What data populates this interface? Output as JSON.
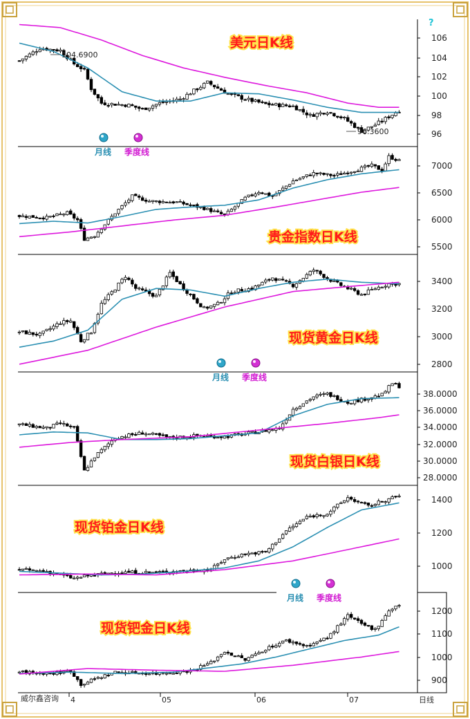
{
  "footer": {
    "brand": "威尔鑫咨询",
    "corner": "日线",
    "help": "?"
  },
  "legend": {
    "month": "月线",
    "quarter": "季度线"
  },
  "x_dates": [
    "4",
    "05",
    "06",
    "07"
  ],
  "chart_data": [
    {
      "type": "candlestick",
      "title": "美元日K线",
      "ticks": [
        "106",
        "104",
        "102",
        "100",
        "98",
        "96"
      ],
      "ylim": [
        95,
        107.3
      ],
      "annotations": [
        "104.6900",
        "96.3600"
      ],
      "anchors": [
        [
          0,
          103.3
        ],
        [
          6,
          104.5
        ],
        [
          12,
          104.3
        ],
        [
          16,
          103.0
        ],
        [
          19,
          102.4
        ],
        [
          21,
          100.6
        ],
        [
          24,
          99.2
        ],
        [
          32,
          99.0
        ],
        [
          36,
          98.6
        ],
        [
          41,
          99.2
        ],
        [
          47,
          99.6
        ],
        [
          55,
          101.2
        ],
        [
          61,
          100.1
        ],
        [
          66,
          99.6
        ],
        [
          72,
          99.1
        ],
        [
          80,
          98.9
        ],
        [
          85,
          98.0
        ],
        [
          90,
          98.4
        ],
        [
          95,
          97.7
        ],
        [
          100,
          96.5
        ],
        [
          104,
          97.1
        ],
        [
          108,
          97.9
        ],
        [
          111,
          98.5
        ]
      ],
      "series": [
        {
          "name": "月线",
          "color": "#2a8fb2",
          "points": [
            [
              0,
              105.0
            ],
            [
              10,
              104.2
            ],
            [
              20,
              102.6
            ],
            [
              30,
              100.3
            ],
            [
              40,
              99.4
            ],
            [
              50,
              99.4
            ],
            [
              60,
              100.2
            ],
            [
              70,
              100.1
            ],
            [
              80,
              99.5
            ],
            [
              90,
              98.8
            ],
            [
              100,
              98.3
            ],
            [
              111,
              98.3
            ]
          ]
        },
        {
          "name": "季度线",
          "color": "#dd18dd",
          "points": [
            [
              0,
              106.8
            ],
            [
              12,
              106.5
            ],
            [
              24,
              105.3
            ],
            [
              36,
              103.8
            ],
            [
              48,
              102.6
            ],
            [
              60,
              101.7
            ],
            [
              72,
              100.9
            ],
            [
              84,
              100.2
            ],
            [
              96,
              99.2
            ],
            [
              105,
              98.8
            ],
            [
              111,
              98.8
            ]
          ]
        }
      ]
    },
    {
      "type": "candlestick",
      "title": "贵金指数日K线",
      "ticks": [
        "7000",
        "6500",
        "6000",
        "5500"
      ],
      "ylim": [
        5400,
        7220
      ],
      "annotations": [],
      "anchors": [
        [
          0,
          6050
        ],
        [
          8,
          6020
        ],
        [
          14,
          6100
        ],
        [
          17,
          5980
        ],
        [
          19,
          5660
        ],
        [
          22,
          5720
        ],
        [
          28,
          6100
        ],
        [
          33,
          6380
        ],
        [
          38,
          6300
        ],
        [
          46,
          6280
        ],
        [
          54,
          6180
        ],
        [
          60,
          6060
        ],
        [
          66,
          6350
        ],
        [
          70,
          6460
        ],
        [
          74,
          6380
        ],
        [
          80,
          6640
        ],
        [
          86,
          6770
        ],
        [
          92,
          6730
        ],
        [
          98,
          6820
        ],
        [
          103,
          6900
        ],
        [
          106,
          6820
        ],
        [
          108,
          7050
        ],
        [
          111,
          6980
        ]
      ],
      "series": [
        {
          "name": "月线",
          "color": "#2a8fb2",
          "points": [
            [
              0,
              5920
            ],
            [
              10,
              5960
            ],
            [
              20,
              5930
            ],
            [
              30,
              6040
            ],
            [
              40,
              6160
            ],
            [
              50,
              6200
            ],
            [
              60,
              6230
            ],
            [
              70,
              6320
            ],
            [
              80,
              6520
            ],
            [
              90,
              6660
            ],
            [
              100,
              6760
            ],
            [
              111,
              6830
            ]
          ]
        },
        {
          "name": "季度线",
          "color": "#dd18dd",
          "points": [
            [
              0,
              5700
            ],
            [
              15,
              5780
            ],
            [
              30,
              5880
            ],
            [
              45,
              5980
            ],
            [
              60,
              6060
            ],
            [
              75,
              6200
            ],
            [
              90,
              6350
            ],
            [
              100,
              6450
            ],
            [
              111,
              6530
            ]
          ]
        }
      ]
    },
    {
      "type": "candlestick",
      "title": "现货黄金日K线",
      "ticks": [
        "3400",
        "3200",
        "3000",
        "2800"
      ],
      "ylim": [
        2760,
        3520
      ],
      "annotations": [],
      "anchors": [
        [
          0,
          3020
        ],
        [
          6,
          3000
        ],
        [
          12,
          3080
        ],
        [
          15,
          3090
        ],
        [
          18,
          2960
        ],
        [
          21,
          3020
        ],
        [
          24,
          3200
        ],
        [
          28,
          3300
        ],
        [
          31,
          3380
        ],
        [
          34,
          3300
        ],
        [
          40,
          3250
        ],
        [
          44,
          3400
        ],
        [
          48,
          3300
        ],
        [
          54,
          3170
        ],
        [
          58,
          3200
        ],
        [
          62,
          3280
        ],
        [
          68,
          3300
        ],
        [
          74,
          3370
        ],
        [
          80,
          3320
        ],
        [
          86,
          3420
        ],
        [
          92,
          3340
        ],
        [
          96,
          3300
        ],
        [
          100,
          3260
        ],
        [
          104,
          3300
        ],
        [
          108,
          3330
        ],
        [
          111,
          3330
        ]
      ],
      "series": [
        {
          "name": "月线",
          "color": "#2a8fb2",
          "points": [
            [
              0,
              2920
            ],
            [
              10,
              2960
            ],
            [
              20,
              3030
            ],
            [
              30,
              3230
            ],
            [
              40,
              3300
            ],
            [
              50,
              3290
            ],
            [
              60,
              3250
            ],
            [
              70,
              3300
            ],
            [
              80,
              3340
            ],
            [
              90,
              3360
            ],
            [
              100,
              3340
            ],
            [
              111,
              3330
            ]
          ]
        },
        {
          "name": "季度线",
          "color": "#dd18dd",
          "points": [
            [
              0,
              2810
            ],
            [
              20,
              2900
            ],
            [
              40,
              3050
            ],
            [
              60,
              3180
            ],
            [
              80,
              3280
            ],
            [
              95,
              3310
            ],
            [
              111,
              3340
            ]
          ]
        }
      ]
    },
    {
      "type": "candlestick",
      "title": "现货白银日K线",
      "ticks": [
        "38.0000",
        "36.0000",
        "34.0000",
        "32.0000",
        "30.0000",
        "28.0000"
      ],
      "ylim": [
        27.5,
        39.4
      ],
      "annotations": [],
      "anchors": [
        [
          0,
          33.9
        ],
        [
          8,
          33.5
        ],
        [
          12,
          34.0
        ],
        [
          16,
          33.5
        ],
        [
          19,
          29.0
        ],
        [
          22,
          30.5
        ],
        [
          28,
          32.5
        ],
        [
          36,
          33.0
        ],
        [
          44,
          32.5
        ],
        [
          52,
          32.7
        ],
        [
          60,
          32.6
        ],
        [
          68,
          33.0
        ],
        [
          76,
          33.5
        ],
        [
          80,
          35.5
        ],
        [
          86,
          36.8
        ],
        [
          90,
          37.1
        ],
        [
          96,
          36.2
        ],
        [
          100,
          36.5
        ],
        [
          106,
          37.0
        ],
        [
          109,
          38.2
        ],
        [
          111,
          37.9
        ]
      ],
      "series": [
        {
          "name": "月线",
          "color": "#2a8fb2",
          "points": [
            [
              0,
              32.8
            ],
            [
              10,
              33.1
            ],
            [
              20,
              33.0
            ],
            [
              30,
              32.3
            ],
            [
              40,
              32.3
            ],
            [
              50,
              32.4
            ],
            [
              60,
              32.7
            ],
            [
              70,
              33.0
            ],
            [
              80,
              34.8
            ],
            [
              90,
              36.0
            ],
            [
              100,
              36.6
            ],
            [
              111,
              36.7
            ]
          ]
        },
        {
          "name": "季度线",
          "color": "#dd18dd",
          "points": [
            [
              0,
              31.5
            ],
            [
              15,
              32.0
            ],
            [
              30,
              32.3
            ],
            [
              50,
              32.6
            ],
            [
              70,
              33.3
            ],
            [
              90,
              34.0
            ],
            [
              105,
              34.6
            ],
            [
              111,
              34.9
            ]
          ]
        }
      ]
    },
    {
      "type": "candlestick",
      "title": "现货铂金日K线",
      "ticks": [
        "1400",
        "1200",
        "1000"
      ],
      "ylim": [
        860,
        1470
      ],
      "annotations": [],
      "anchors": [
        [
          0,
          990
        ],
        [
          8,
          980
        ],
        [
          16,
          940
        ],
        [
          20,
          955
        ],
        [
          28,
          975
        ],
        [
          40,
          975
        ],
        [
          50,
          985
        ],
        [
          56,
          990
        ],
        [
          60,
          1050
        ],
        [
          66,
          1080
        ],
        [
          72,
          1090
        ],
        [
          78,
          1210
        ],
        [
          84,
          1290
        ],
        [
          90,
          1310
        ],
        [
          96,
          1400
        ],
        [
          102,
          1350
        ],
        [
          106,
          1380
        ],
        [
          111,
          1410
        ]
      ],
      "series": [
        {
          "name": "月线",
          "color": "#2a8fb2",
          "points": [
            [
              0,
              980
            ],
            [
              12,
              970
            ],
            [
              24,
              960
            ],
            [
              36,
              965
            ],
            [
              48,
              980
            ],
            [
              60,
              1000
            ],
            [
              70,
              1040
            ],
            [
              80,
              1120
            ],
            [
              90,
              1230
            ],
            [
              100,
              1330
            ],
            [
              111,
              1370
            ]
          ]
        },
        {
          "name": "季度线",
          "color": "#dd18dd",
          "points": [
            [
              0,
              960
            ],
            [
              20,
              965
            ],
            [
              40,
              960
            ],
            [
              60,
              990
            ],
            [
              80,
              1040
            ],
            [
              95,
              1100
            ],
            [
              111,
              1165
            ]
          ]
        }
      ]
    },
    {
      "type": "candlestick",
      "title": "现货钯金日K线",
      "ticks": [
        "1200",
        "1100",
        "1000",
        "900"
      ],
      "ylim": [
        880,
        1245
      ],
      "annotations": [],
      "anchors": [
        [
          0,
          955
        ],
        [
          10,
          950
        ],
        [
          15,
          960
        ],
        [
          18,
          910
        ],
        [
          22,
          930
        ],
        [
          28,
          955
        ],
        [
          40,
          950
        ],
        [
          50,
          960
        ],
        [
          56,
          990
        ],
        [
          60,
          1030
        ],
        [
          66,
          1000
        ],
        [
          72,
          1040
        ],
        [
          78,
          1070
        ],
        [
          84,
          1050
        ],
        [
          90,
          1080
        ],
        [
          96,
          1160
        ],
        [
          100,
          1130
        ],
        [
          104,
          1110
        ],
        [
          108,
          1180
        ],
        [
          111,
          1200
        ]
      ],
      "series": [
        {
          "name": "月线",
          "color": "#2a8fb2",
          "points": [
            [
              0,
              950
            ],
            [
              15,
              955
            ],
            [
              30,
              950
            ],
            [
              45,
              955
            ],
            [
              55,
              970
            ],
            [
              65,
              985
            ],
            [
              75,
              1010
            ],
            [
              85,
              1040
            ],
            [
              95,
              1070
            ],
            [
              105,
              1090
            ],
            [
              111,
              1120
            ]
          ]
        },
        {
          "name": "季度线",
          "color": "#dd18dd",
          "points": [
            [
              0,
              948
            ],
            [
              20,
              968
            ],
            [
              40,
              962
            ],
            [
              60,
              958
            ],
            [
              80,
              980
            ],
            [
              100,
              1010
            ],
            [
              111,
              1030
            ]
          ]
        }
      ]
    }
  ]
}
